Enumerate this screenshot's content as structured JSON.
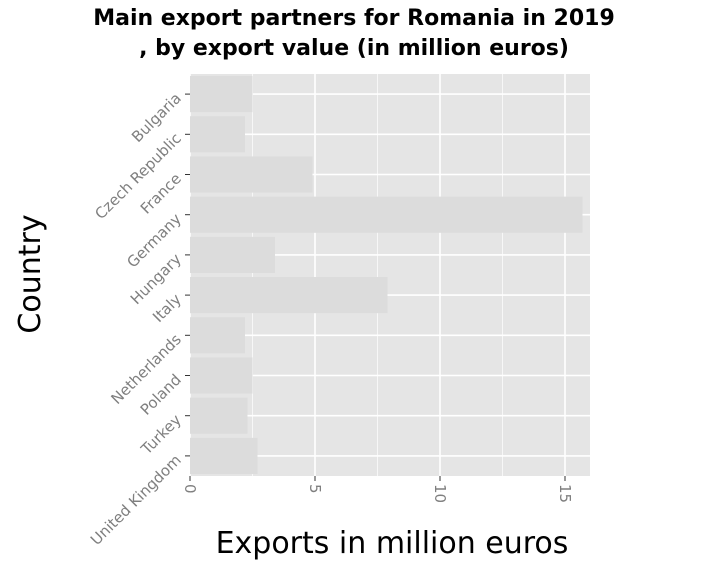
{
  "chart_data": {
    "type": "bar",
    "orientation": "horizontal",
    "title_line1": "Main export partners for Romania in 2019",
    "title_line2": ", by export value (in million euros)",
    "xlabel": "Exports in million euros",
    "ylabel": "Country",
    "categories": [
      "Bulgaria",
      "Czech Republic",
      "France",
      "Germany",
      "Hungary",
      "Italy",
      "Netherlands",
      "Poland",
      "Turkey",
      "United Kingdom"
    ],
    "values": [
      2.5,
      2.2,
      4.9,
      15.7,
      3.4,
      7.9,
      2.2,
      2.5,
      2.3,
      2.7
    ],
    "x_ticks": [
      "0",
      "5",
      "10",
      "15"
    ],
    "xlim": [
      0,
      16
    ],
    "grid": true,
    "colors": {
      "panel": "#e5e5e5",
      "grid": "#ffffff",
      "bar": "#dcdcdc",
      "tick_text": "#7f7f7f"
    }
  }
}
